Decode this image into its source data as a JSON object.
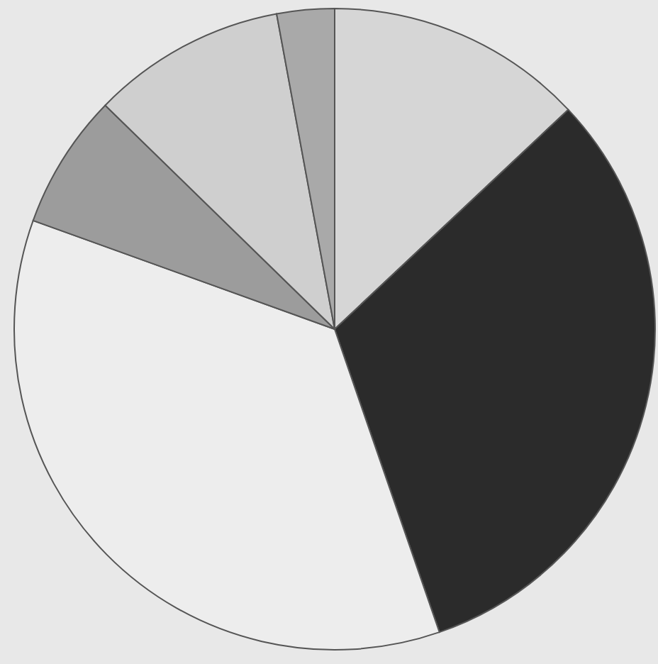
{
  "chart_data": {
    "type": "pie",
    "categories": [
      null,
      null,
      null,
      null,
      null,
      null
    ],
    "values": [
      13,
      31.7,
      35.8,
      6.8,
      9.8,
      2.9
    ],
    "colors": [
      "#d6d6d6",
      "#2b2b2b",
      "#ededed",
      "#9c9c9c",
      "#cfcfcf",
      "#a9a9a9"
    ]
  }
}
